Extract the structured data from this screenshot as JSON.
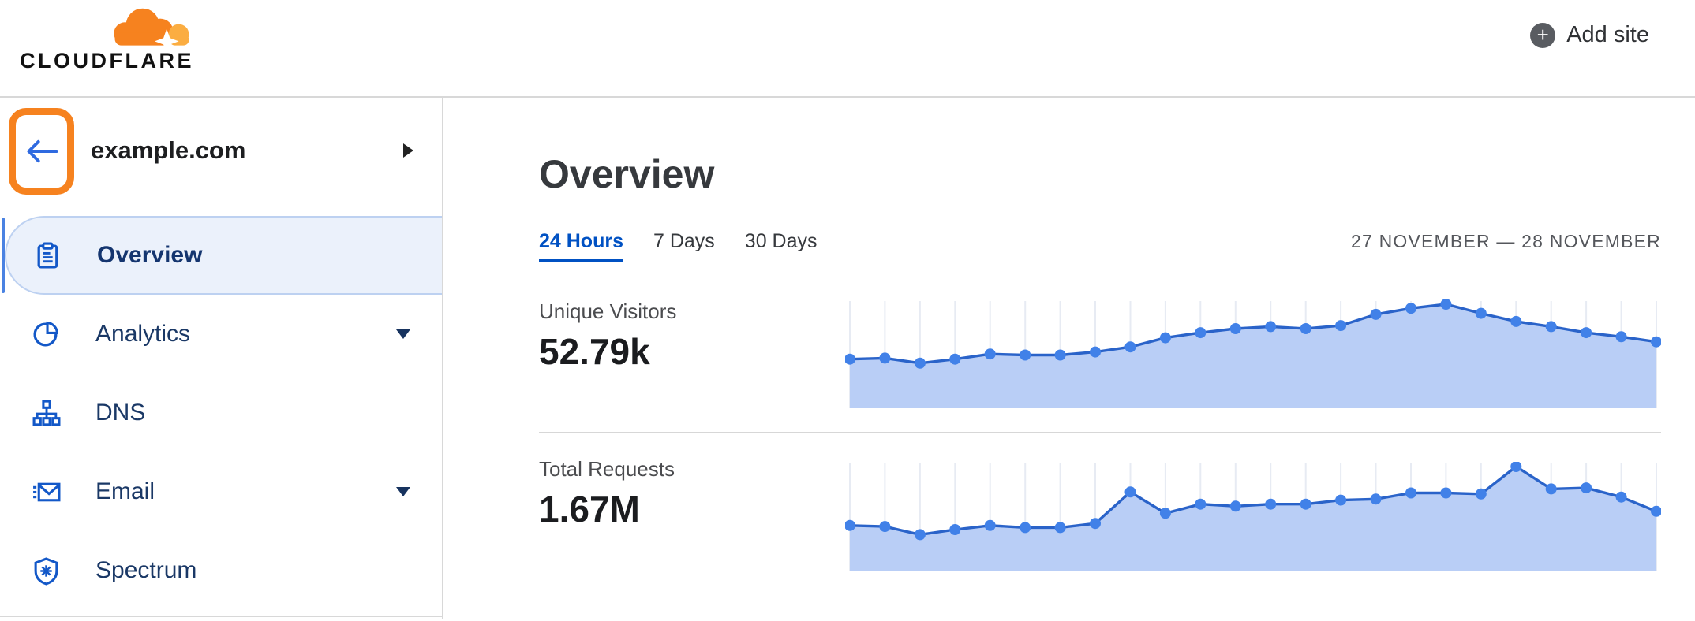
{
  "header": {
    "logo_text": "CLOUDFLARE",
    "add_site_label": "Add site"
  },
  "sidebar": {
    "site_name": "example.com",
    "items": [
      {
        "label": "Overview",
        "icon": "clipboard-icon",
        "active": true,
        "has_caret": false
      },
      {
        "label": "Analytics",
        "icon": "pie-chart-icon",
        "active": false,
        "has_caret": true
      },
      {
        "label": "DNS",
        "icon": "sitemap-icon",
        "active": false,
        "has_caret": false
      },
      {
        "label": "Email",
        "icon": "envelope-icon",
        "active": false,
        "has_caret": true
      },
      {
        "label": "Spectrum",
        "icon": "shield-icon",
        "active": false,
        "has_caret": false
      }
    ]
  },
  "main": {
    "title": "Overview",
    "tabs": [
      {
        "label": "24 Hours",
        "active": true
      },
      {
        "label": "7 Days",
        "active": false
      },
      {
        "label": "30 Days",
        "active": false
      }
    ],
    "date_range": "27 NOVEMBER — 28 NOVEMBER",
    "metrics": [
      {
        "label": "Unique Visitors",
        "value": "52.79k"
      },
      {
        "label": "Total Requests",
        "value": "1.67M"
      }
    ]
  },
  "colors": {
    "brand_orange": "#f6821f",
    "logo_light_orange": "#fbad41",
    "accent_blue": "#0051c3",
    "nav_text_navy": "#1a3866",
    "icon_blue": "#1358c8",
    "chart_dot": "#4181e8",
    "chart_line": "#2a63c9",
    "chart_fill": "#b9cef6",
    "chart_grid": "#e7ebf3",
    "highlight_orange": "#f6821f",
    "divider_gray": "#d8d8d8",
    "active_item_bg": "#ebf1fb",
    "active_item_border": "#bdd1f1"
  },
  "chart_data": [
    {
      "type": "area",
      "title": "Unique Visitors",
      "total_label": "52.79k",
      "x": "24 hourly points, 27 November — 28 November (tick labels not shown)",
      "ylabel": "unlabeled sparkline; values are % of series peak, estimated from pixels",
      "grid": "light vertical gridline at each point",
      "legend": "none",
      "values_relative_pct": [
        46,
        47,
        42,
        46,
        51,
        50,
        50,
        53,
        58,
        67,
        72,
        76,
        78,
        76,
        79,
        90,
        96,
        100,
        91,
        83,
        78,
        72,
        68,
        63
      ]
    },
    {
      "type": "area",
      "title": "Total Requests",
      "total_label": "1.67M",
      "x": "24 hourly points, 27 November — 28 November (tick labels not shown)",
      "ylabel": "unlabeled sparkline; values are % of series peak, estimated from pixels",
      "grid": "light vertical gridline at each point",
      "legend": "none",
      "values_relative_pct": [
        42,
        41,
        33,
        38,
        42,
        40,
        40,
        44,
        75,
        54,
        63,
        61,
        63,
        63,
        67,
        68,
        74,
        74,
        73,
        100,
        78,
        79,
        70,
        56
      ]
    }
  ]
}
